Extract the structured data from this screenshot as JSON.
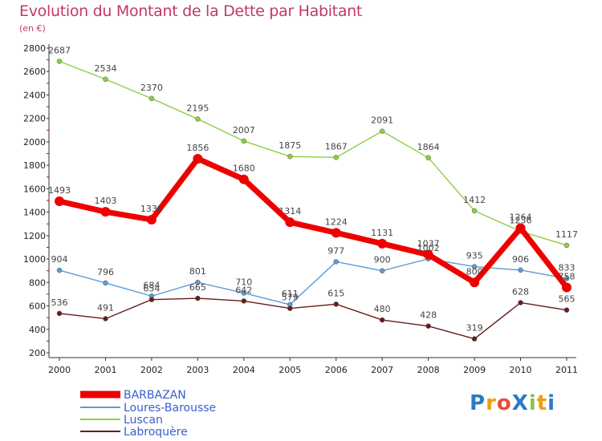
{
  "chart_data": {
    "type": "line",
    "title": "Evolution du Montant de la Dette par Habitant",
    "subtitle": "(en €)",
    "x": [
      "2000",
      "2001",
      "2002",
      "2003",
      "2004",
      "2005",
      "2006",
      "2007",
      "2008",
      "2009",
      "2010",
      "2011"
    ],
    "ylim": [
      200,
      2800
    ],
    "yticks": [
      200,
      400,
      600,
      800,
      1000,
      1200,
      1400,
      1600,
      1800,
      2000,
      2200,
      2400,
      2600,
      2800
    ],
    "grid": false,
    "legend_position": "bottom-left",
    "series": [
      {
        "name": "BARBAZAN",
        "color": "#ee0000",
        "values": [
          1493,
          1403,
          1336,
          1856,
          1680,
          1314,
          1224,
          1131,
          1037,
          800,
          1264,
          758
        ]
      },
      {
        "name": "Loures-Barousse",
        "color": "#5b9bd5",
        "values": [
          904,
          796,
          684,
          801,
          710,
          611,
          977,
          900,
          1002,
          935,
          906,
          833
        ]
      },
      {
        "name": "Luscan",
        "color": "#8ccf44",
        "values": [
          2687,
          2534,
          2370,
          2195,
          2007,
          1875,
          1867,
          2091,
          1864,
          1412,
          1236,
          1117
        ]
      },
      {
        "name": "Labroquère",
        "color": "#6b1a1a",
        "values": [
          536,
          491,
          654,
          665,
          642,
          579,
          615,
          480,
          428,
          319,
          628,
          565
        ]
      }
    ]
  },
  "logo": {
    "text": "ProXiti",
    "letters": [
      "P",
      "r",
      "o",
      "X",
      "i",
      "t",
      "i"
    ],
    "colors": [
      "#2b7bc4",
      "#f39c12",
      "#e74c3c",
      "#2b7bc4",
      "#8bc34a",
      "#f39c12",
      "#2b7bc4"
    ]
  }
}
